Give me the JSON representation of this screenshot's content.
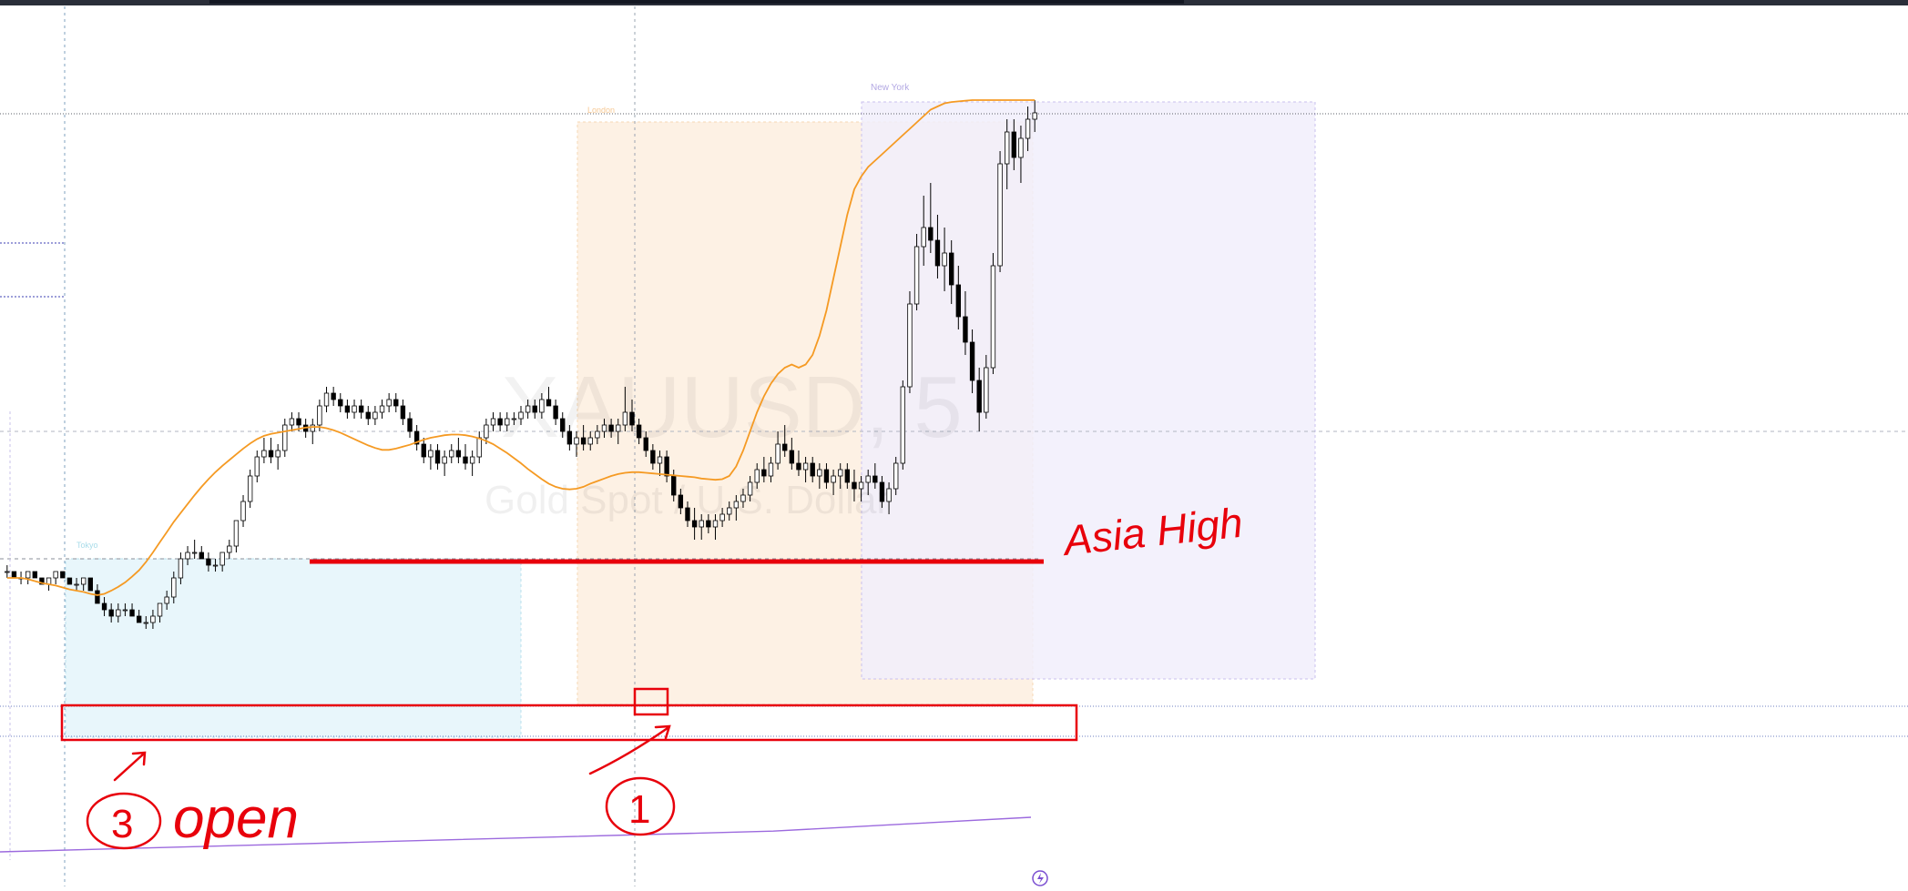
{
  "chart_data": {
    "type": "candlestick",
    "watermark": {
      "symbol": "XAUUSD, 5",
      "description": "Gold Spot / U.S. Dollar"
    },
    "ylim": [
      0,
      100
    ],
    "session_labels": {
      "asia": "Tokyo",
      "london": "London",
      "newyork": "New York"
    },
    "annotations": {
      "asia_high": "Asia High",
      "open": "open",
      "circle_three": "3",
      "circle_one": "1"
    },
    "colors": {
      "up": "#ffffff",
      "down": "#000000",
      "ema": "#f59a23",
      "long_ma": "#9c6ade",
      "markup": "#e8000b",
      "asia_fill": "#e8f6fb",
      "london_fill": "#fdf1e4",
      "ny_fill": "#f1eefb"
    },
    "candles": [
      [
        26,
        27,
        25,
        26
      ],
      [
        26,
        26,
        25,
        25
      ],
      [
        25,
        26,
        24,
        25
      ],
      [
        25,
        26,
        24,
        26
      ],
      [
        26,
        26,
        25,
        25
      ],
      [
        25,
        25,
        24,
        24
      ],
      [
        24,
        25,
        23,
        25
      ],
      [
        25,
        26,
        24,
        26
      ],
      [
        26,
        26,
        25,
        25
      ],
      [
        25,
        25,
        24,
        24
      ],
      [
        24,
        25,
        23,
        24
      ],
      [
        24,
        25,
        23,
        25
      ],
      [
        25,
        25,
        23,
        23
      ],
      [
        23,
        24,
        21,
        21
      ],
      [
        21,
        22,
        19,
        20
      ],
      [
        20,
        21,
        18,
        19
      ],
      [
        19,
        21,
        18,
        20
      ],
      [
        20,
        21,
        19,
        20
      ],
      [
        20,
        21,
        19,
        19
      ],
      [
        19,
        20,
        18,
        18
      ],
      [
        18,
        19,
        17,
        18
      ],
      [
        18,
        20,
        17,
        19
      ],
      [
        19,
        21,
        18,
        21
      ],
      [
        21,
        23,
        20,
        22
      ],
      [
        22,
        26,
        21,
        25
      ],
      [
        25,
        29,
        24,
        28
      ],
      [
        28,
        30,
        27,
        29
      ],
      [
        29,
        31,
        28,
        29
      ],
      [
        29,
        30,
        28,
        28
      ],
      [
        28,
        29,
        26,
        27
      ],
      [
        27,
        28,
        26,
        27
      ],
      [
        27,
        29,
        26,
        29
      ],
      [
        29,
        31,
        28,
        30
      ],
      [
        30,
        34,
        29,
        34
      ],
      [
        34,
        38,
        33,
        37
      ],
      [
        37,
        42,
        36,
        41
      ],
      [
        41,
        45,
        40,
        44
      ],
      [
        44,
        47,
        43,
        45
      ],
      [
        45,
        47,
        43,
        44
      ],
      [
        44,
        46,
        42,
        45
      ],
      [
        45,
        50,
        44,
        49
      ],
      [
        49,
        51,
        48,
        50
      ],
      [
        50,
        51,
        48,
        49
      ],
      [
        49,
        50,
        47,
        48
      ],
      [
        48,
        50,
        46,
        49
      ],
      [
        49,
        53,
        48,
        52
      ],
      [
        52,
        55,
        51,
        54
      ],
      [
        54,
        55,
        52,
        53
      ],
      [
        53,
        54,
        51,
        52
      ],
      [
        52,
        53,
        50,
        51
      ],
      [
        51,
        53,
        50,
        52
      ],
      [
        52,
        53,
        50,
        51
      ],
      [
        51,
        52,
        49,
        50
      ],
      [
        50,
        52,
        49,
        51
      ],
      [
        51,
        53,
        50,
        52
      ],
      [
        52,
        54,
        51,
        53
      ],
      [
        53,
        54,
        51,
        52
      ],
      [
        52,
        53,
        49,
        50
      ],
      [
        50,
        51,
        47,
        48
      ],
      [
        48,
        49,
        45,
        46
      ],
      [
        46,
        47,
        43,
        44
      ],
      [
        44,
        46,
        42,
        45
      ],
      [
        45,
        46,
        42,
        43
      ],
      [
        43,
        45,
        41,
        44
      ],
      [
        44,
        46,
        43,
        45
      ],
      [
        45,
        47,
        43,
        44
      ],
      [
        44,
        46,
        42,
        43
      ],
      [
        43,
        45,
        41,
        44
      ],
      [
        44,
        48,
        43,
        47
      ],
      [
        47,
        50,
        46,
        49
      ],
      [
        49,
        51,
        48,
        50
      ],
      [
        50,
        51,
        48,
        49
      ],
      [
        49,
        51,
        48,
        50
      ],
      [
        50,
        51,
        49,
        50
      ],
      [
        50,
        52,
        49,
        51
      ],
      [
        51,
        53,
        50,
        52
      ],
      [
        52,
        53,
        50,
        51
      ],
      [
        51,
        54,
        50,
        53
      ],
      [
        53,
        55,
        52,
        52
      ],
      [
        52,
        53,
        49,
        50
      ],
      [
        50,
        51,
        47,
        48
      ],
      [
        48,
        49,
        45,
        46
      ],
      [
        46,
        48,
        44,
        47
      ],
      [
        47,
        49,
        45,
        46
      ],
      [
        46,
        48,
        45,
        47
      ],
      [
        47,
        49,
        46,
        48
      ],
      [
        48,
        50,
        47,
        49
      ],
      [
        49,
        50,
        47,
        48
      ],
      [
        48,
        50,
        46,
        49
      ],
      [
        49,
        55,
        48,
        51
      ],
      [
        51,
        53,
        48,
        49
      ],
      [
        49,
        50,
        46,
        47
      ],
      [
        47,
        48,
        44,
        45
      ],
      [
        45,
        46,
        42,
        43
      ],
      [
        43,
        45,
        41,
        44
      ],
      [
        44,
        45,
        40,
        41
      ],
      [
        41,
        42,
        37,
        38
      ],
      [
        38,
        39,
        35,
        36
      ],
      [
        36,
        37,
        33,
        34
      ],
      [
        34,
        36,
        31,
        33
      ],
      [
        33,
        35,
        31,
        34
      ],
      [
        34,
        35,
        32,
        33
      ],
      [
        33,
        35,
        31,
        34
      ],
      [
        34,
        36,
        33,
        35
      ],
      [
        35,
        37,
        34,
        36
      ],
      [
        36,
        38,
        34,
        37
      ],
      [
        37,
        39,
        36,
        38
      ],
      [
        38,
        41,
        37,
        40
      ],
      [
        40,
        43,
        39,
        42
      ],
      [
        42,
        44,
        40,
        41
      ],
      [
        41,
        44,
        40,
        43
      ],
      [
        43,
        48,
        42,
        46
      ],
      [
        46,
        49,
        44,
        45
      ],
      [
        45,
        47,
        42,
        43
      ],
      [
        43,
        45,
        41,
        42
      ],
      [
        42,
        44,
        40,
        43
      ],
      [
        43,
        44,
        40,
        41
      ],
      [
        41,
        43,
        39,
        42
      ],
      [
        42,
        43,
        39,
        40
      ],
      [
        40,
        42,
        38,
        41
      ],
      [
        41,
        43,
        39,
        42
      ],
      [
        42,
        43,
        39,
        40
      ],
      [
        40,
        42,
        37,
        39
      ],
      [
        39,
        41,
        37,
        40
      ],
      [
        40,
        42,
        38,
        41
      ],
      [
        41,
        43,
        39,
        40
      ],
      [
        40,
        41,
        36,
        37
      ],
      [
        37,
        40,
        35,
        39
      ],
      [
        39,
        44,
        38,
        43
      ],
      [
        43,
        56,
        42,
        55
      ],
      [
        55,
        70,
        54,
        68
      ],
      [
        68,
        79,
        67,
        77
      ],
      [
        77,
        85,
        74,
        80
      ],
      [
        80,
        87,
        76,
        78
      ],
      [
        78,
        82,
        72,
        74
      ],
      [
        74,
        80,
        70,
        76
      ],
      [
        76,
        78,
        68,
        71
      ],
      [
        71,
        74,
        64,
        66
      ],
      [
        66,
        70,
        60,
        62
      ],
      [
        62,
        64,
        54,
        56
      ],
      [
        56,
        58,
        48,
        51
      ],
      [
        51,
        60,
        50,
        58
      ],
      [
        58,
        76,
        57,
        74
      ],
      [
        74,
        92,
        73,
        90
      ],
      [
        90,
        97,
        86,
        95
      ],
      [
        95,
        97,
        89,
        91
      ],
      [
        91,
        96,
        87,
        94
      ],
      [
        94,
        99,
        92,
        97
      ],
      [
        97,
        100,
        95,
        98
      ]
    ],
    "ema_values": [
      25,
      25,
      25,
      24.8,
      24.5,
      24.2,
      24,
      23.8,
      23.5,
      23.2,
      23,
      22.8,
      22.5,
      22.3,
      22.5,
      23,
      23.6,
      24.3,
      25.2,
      26.2,
      27.5,
      29,
      30.6,
      32.2,
      33.8,
      35.2,
      36.6,
      38,
      39.3,
      40.5,
      41.6,
      42.6,
      43.5,
      44.4,
      45.3,
      46.1,
      46.8,
      47.3,
      47.6,
      47.8,
      48,
      48.2,
      48.4,
      48.6,
      48.7,
      48.7,
      48.5,
      48.2,
      47.8,
      47.3,
      46.8,
      46.3,
      45.8,
      45.4,
      45.1,
      45.1,
      45.3,
      45.6,
      45.9,
      46.3,
      46.7,
      47,
      47.2,
      47.4,
      47.5,
      47.5,
      47.4,
      47.2,
      46.9,
      46.5,
      46,
      45.3,
      44.6,
      43.8,
      43,
      42.1,
      41.3,
      40.5,
      39.8,
      39.3,
      39,
      38.9,
      39,
      39.3,
      39.8,
      40.2,
      40.6,
      41,
      41.3,
      41.5,
      41.6,
      41.6,
      41.5,
      41.4,
      41.3,
      41.2,
      41.1,
      41,
      40.9,
      40.8,
      40.6,
      40.5,
      40.4,
      40.5,
      41,
      42.5,
      45,
      48,
      51,
      53.5,
      55.5,
      57,
      58,
      58.5,
      58,
      58.5,
      60,
      63,
      67,
      72,
      77,
      82,
      86,
      88,
      89.5,
      90.5,
      91.5,
      92.5,
      93.5,
      94.5,
      95.5,
      96.5,
      97.5,
      98.5,
      99,
      99.5,
      99.7,
      99.8,
      99.9,
      100,
      100,
      100,
      100,
      100,
      100,
      100,
      100,
      100,
      100,
      100,
      100,
      100,
      100,
      100,
      100,
      100,
      100,
      100,
      100,
      100,
      100,
      100,
      100,
      100
    ],
    "long_ma_values": [
      0,
      2,
      4,
      6,
      8,
      10,
      12,
      16,
      20
    ]
  }
}
